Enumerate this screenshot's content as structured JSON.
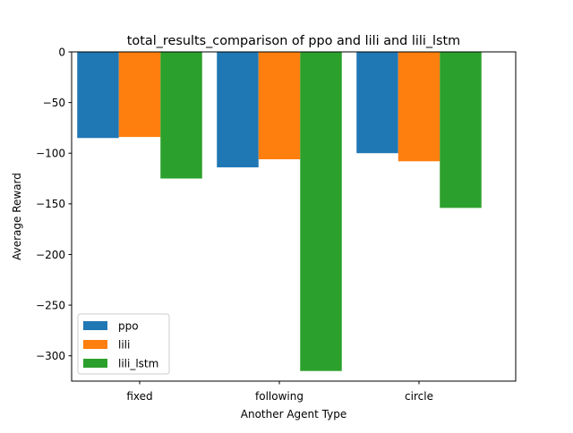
{
  "chart_data": {
    "type": "bar",
    "title": "total_results_comparison of ppo and lili and lili_lstm",
    "xlabel": "Another Agent Type",
    "ylabel": "Average Reward",
    "categories": [
      "fixed",
      "following",
      "circle"
    ],
    "series": [
      {
        "name": "ppo",
        "color": "#1f77b4",
        "values": [
          -85,
          -114,
          -100
        ]
      },
      {
        "name": "lili",
        "color": "#ff7f0e",
        "values": [
          -84,
          -106,
          -108
        ]
      },
      {
        "name": "lili_lstm",
        "color": "#2ca02c",
        "values": [
          -125,
          -315,
          -154
        ]
      }
    ],
    "ylim": [
      -325,
      0
    ],
    "yticks": [
      0,
      -50,
      -100,
      -150,
      -200,
      -250,
      -300
    ],
    "ytick_labels": [
      "0",
      "−50",
      "−100",
      "−150",
      "−200",
      "−250",
      "−300"
    ],
    "grid": false,
    "legend_position": "lower-left"
  }
}
